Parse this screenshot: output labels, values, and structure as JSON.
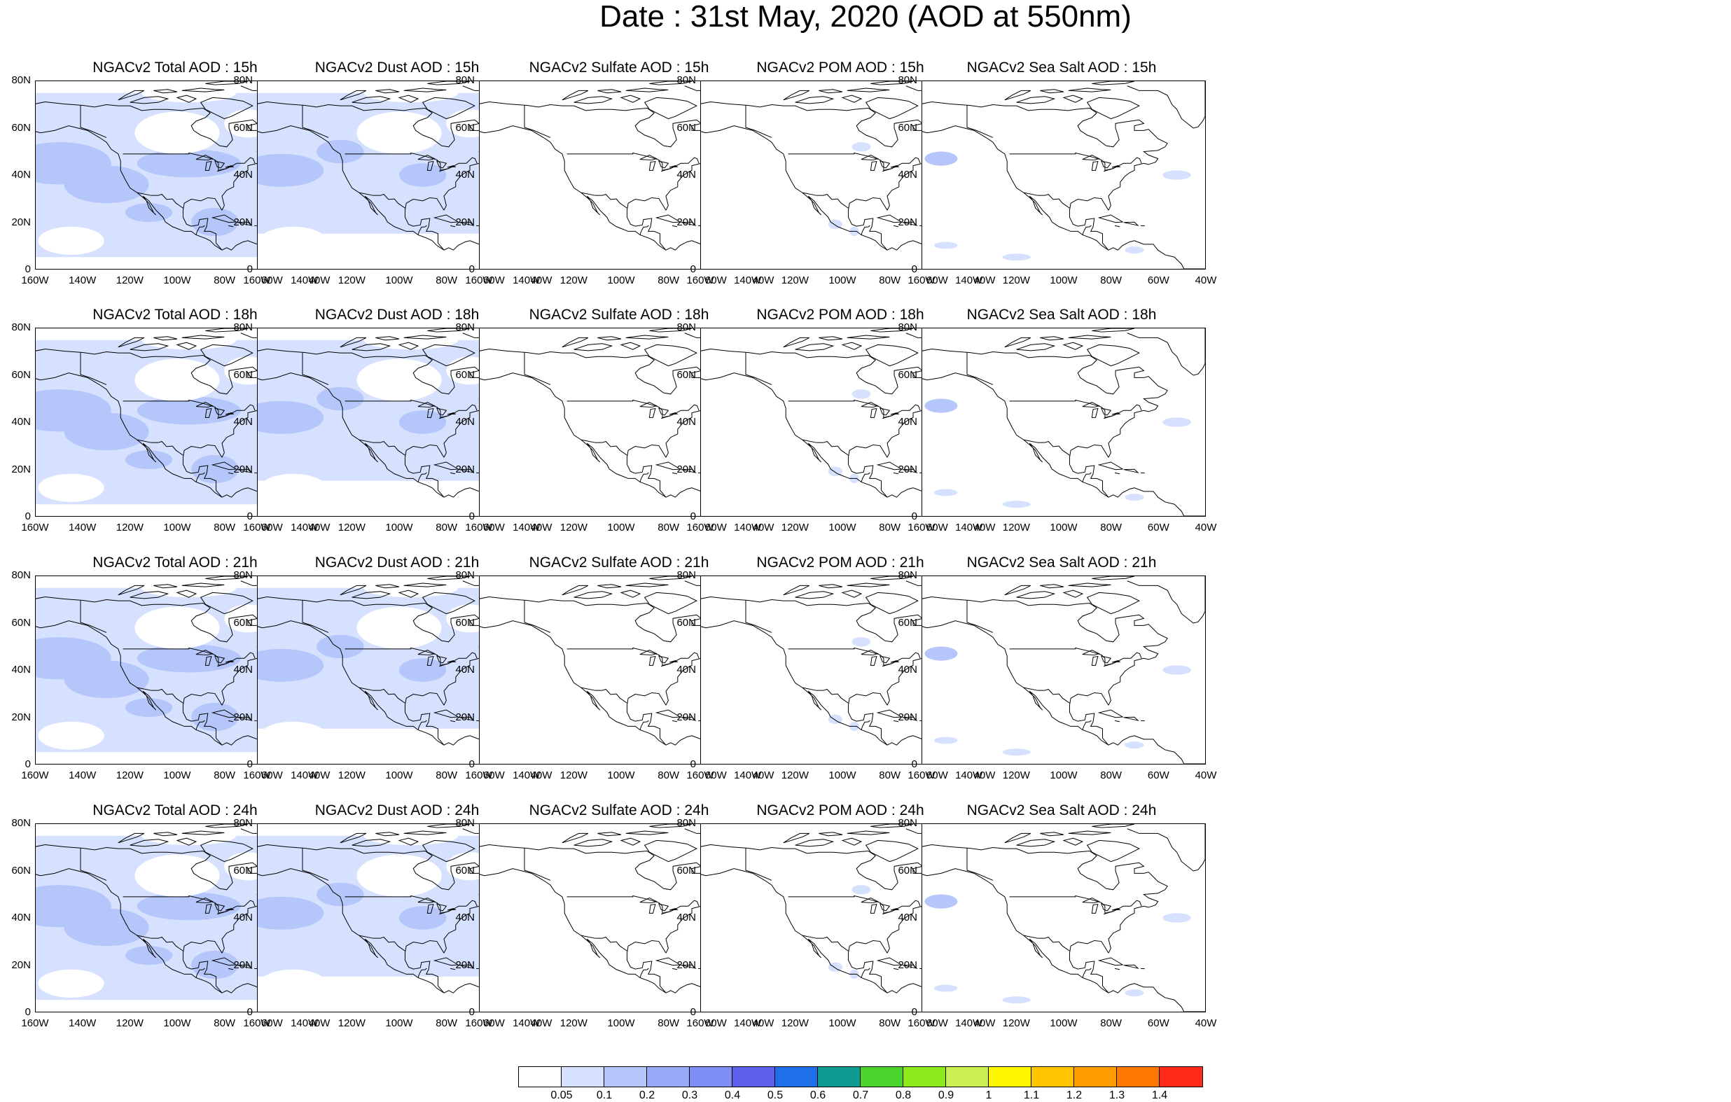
{
  "title": "Date : 31st May, 2020 (AOD at 550nm)",
  "panels": [
    {
      "title": "NGACv2 Total AOD : 15h",
      "aerosol": "total"
    },
    {
      "title": "NGACv2 Dust AOD : 15h",
      "aerosol": "dust"
    },
    {
      "title": "NGACv2 Sulfate AOD : 15h",
      "aerosol": "sulfate"
    },
    {
      "title": "NGACv2 POM AOD : 15h",
      "aerosol": "pom"
    },
    {
      "title": "NGACv2 Sea Salt AOD : 15h",
      "aerosol": "seasalt"
    },
    {
      "title": "NGACv2 Total AOD : 18h",
      "aerosol": "total"
    },
    {
      "title": "NGACv2 Dust AOD : 18h",
      "aerosol": "dust"
    },
    {
      "title": "NGACv2 Sulfate AOD : 18h",
      "aerosol": "sulfate"
    },
    {
      "title": "NGACv2 POM AOD : 18h",
      "aerosol": "pom"
    },
    {
      "title": "NGACv2 Sea Salt AOD : 18h",
      "aerosol": "seasalt"
    },
    {
      "title": "NGACv2 Total AOD : 21h",
      "aerosol": "total"
    },
    {
      "title": "NGACv2 Dust AOD : 21h",
      "aerosol": "dust"
    },
    {
      "title": "NGACv2 Sulfate AOD : 21h",
      "aerosol": "sulfate"
    },
    {
      "title": "NGACv2 POM AOD : 21h",
      "aerosol": "pom"
    },
    {
      "title": "NGACv2 Sea Salt AOD : 21h",
      "aerosol": "seasalt"
    },
    {
      "title": "NGACv2 Total AOD : 24h",
      "aerosol": "total"
    },
    {
      "title": "NGACv2 Dust AOD : 24h",
      "aerosol": "dust"
    },
    {
      "title": "NGACv2 Sulfate AOD : 24h",
      "aerosol": "sulfate"
    },
    {
      "title": "NGACv2 POM AOD : 24h",
      "aerosol": "pom"
    },
    {
      "title": "NGACv2 Sea Salt  AOD : 24h",
      "aerosol": "seasalt"
    }
  ],
  "map": {
    "lat_labels": [
      "80N",
      "60N",
      "40N",
      "20N",
      "0"
    ],
    "lat_values": [
      80,
      60,
      40,
      20,
      0
    ],
    "lon_labels": [
      "160W",
      "140W",
      "120W",
      "100W",
      "80W",
      "60W",
      "40W"
    ],
    "lon_values": [
      -160,
      -140,
      -120,
      -100,
      -80,
      -60,
      -40
    ],
    "lon_range": [
      -160,
      -40
    ],
    "lat_range": [
      0,
      80
    ]
  },
  "colorbar": {
    "colors": [
      "#ffffff",
      "#d6e1ff",
      "#b4c6fa",
      "#96aaf7",
      "#7e90f5",
      "#5c60eb",
      "#1f6fe8",
      "#0c9c92",
      "#4bd42c",
      "#8de91b",
      "#c9f050",
      "#fff700",
      "#ffc400",
      "#ff9d00",
      "#ff7800",
      "#ff2a1a"
    ],
    "labels": [
      "0.05",
      "0.1",
      "0.2",
      "0.3",
      "0.4",
      "0.5",
      "0.6",
      "0.7",
      "0.8",
      "0.9",
      "1",
      "1.1",
      "1.2",
      "1.3",
      "1.4"
    ]
  }
}
